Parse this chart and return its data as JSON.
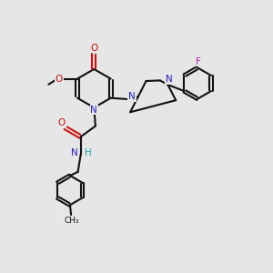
{
  "bg": "#e6e6e6",
  "bc": "#111111",
  "Nc": "#2222cc",
  "Oc": "#cc1111",
  "Fc": "#bb22bb",
  "Hc": "#22aaaa",
  "lw": 1.5,
  "off": 0.055,
  "fs": 7.5,
  "figsize": [
    3.0,
    3.0
  ],
  "dpi": 100,
  "xlim": [
    0.2,
    9.8
  ],
  "ylim": [
    0.5,
    9.5
  ]
}
